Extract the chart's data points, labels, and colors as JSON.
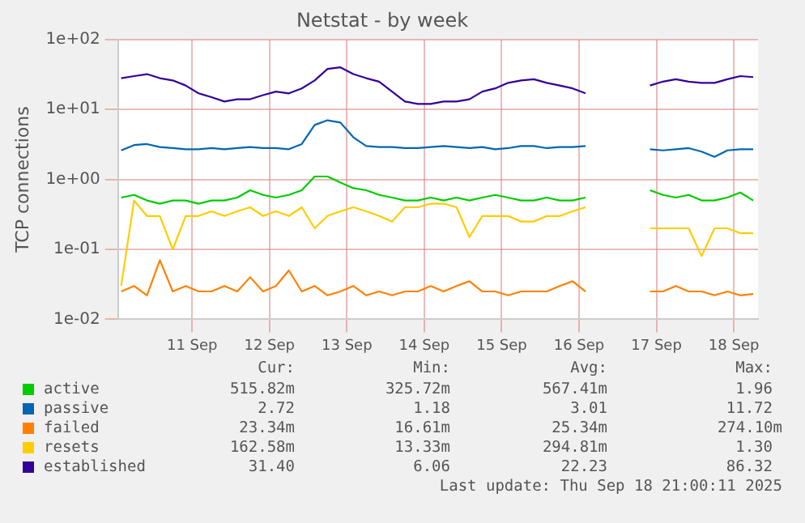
{
  "chart_data": {
    "type": "line",
    "title": "Netstat - by week",
    "ylabel": "TCP connections",
    "log": "y",
    "grid": true,
    "legend": "bottom",
    "marker": "none",
    "line_style": "solid",
    "x": [
      "2025-09-10T14:00",
      "2025-09-10T18:00",
      "2025-09-10T22:00",
      "2025-09-11T02:00",
      "2025-09-11T06:00",
      "2025-09-11T10:00",
      "2025-09-11T14:00",
      "2025-09-11T18:00",
      "2025-09-11T22:00",
      "2025-09-12T02:00",
      "2025-09-12T06:00",
      "2025-09-12T10:00",
      "2025-09-12T14:00",
      "2025-09-12T18:00",
      "2025-09-12T22:00",
      "2025-09-13T02:00",
      "2025-09-13T06:00",
      "2025-09-13T10:00",
      "2025-09-13T14:00",
      "2025-09-13T18:00",
      "2025-09-13T22:00",
      "2025-09-14T02:00",
      "2025-09-14T06:00",
      "2025-09-14T10:00",
      "2025-09-14T14:00",
      "2025-09-14T18:00",
      "2025-09-14T22:00",
      "2025-09-15T02:00",
      "2025-09-15T06:00",
      "2025-09-15T10:00",
      "2025-09-15T14:00",
      "2025-09-15T18:00",
      "2025-09-15T22:00",
      "2025-09-16T02:00",
      "2025-09-16T06:00",
      "2025-09-16T10:00",
      "2025-09-16T14:00",
      "2025-09-16T18:00",
      "2025-09-16T22:00",
      "2025-09-17T02:00",
      "2025-09-17T06:00",
      "2025-09-17T10:00",
      "2025-09-17T14:00",
      "2025-09-17T18:00",
      "2025-09-17T22:00",
      "2025-09-18T02:00",
      "2025-09-18T06:00",
      "2025-09-18T10:00",
      "2025-09-18T14:00",
      "2025-09-18T18:00"
    ],
    "xlim": [
      "2025-09-10T13:00",
      "2025-09-18T19:30"
    ],
    "xticks": [
      {
        "value": "2025-09-11T12:00",
        "label": "11 Sep"
      },
      {
        "value": "2025-09-12T12:00",
        "label": "12 Sep"
      },
      {
        "value": "2025-09-13T12:00",
        "label": "13 Sep"
      },
      {
        "value": "2025-09-14T12:00",
        "label": "14 Sep"
      },
      {
        "value": "2025-09-15T12:00",
        "label": "15 Sep"
      },
      {
        "value": "2025-09-16T12:00",
        "label": "16 Sep"
      },
      {
        "value": "2025-09-17T12:00",
        "label": "17 Sep"
      },
      {
        "value": "2025-09-18T12:00",
        "label": "18 Sep"
      }
    ],
    "ylim": [
      0.01,
      100
    ],
    "yticks": [
      {
        "value": 0.01,
        "label": "1e-02"
      },
      {
        "value": 0.1,
        "label": "1e-01"
      },
      {
        "value": 1,
        "label": "1e+00"
      },
      {
        "value": 10,
        "label": "1e+01"
      },
      {
        "value": 100,
        "label": "1e+02"
      }
    ],
    "series": [
      {
        "name": "active",
        "color": "#00cc00",
        "values": [
          0.55,
          0.6,
          0.5,
          0.45,
          0.5,
          0.5,
          0.45,
          0.5,
          0.5,
          0.55,
          0.7,
          0.6,
          0.55,
          0.6,
          0.7,
          1.1,
          1.1,
          0.9,
          0.75,
          0.7,
          0.6,
          0.55,
          0.5,
          0.5,
          0.55,
          0.5,
          0.55,
          0.5,
          0.55,
          0.6,
          0.55,
          0.5,
          0.5,
          0.55,
          0.5,
          0.5,
          0.55,
          null,
          null,
          null,
          null,
          0.7,
          0.6,
          0.55,
          0.6,
          0.5,
          0.5,
          0.55,
          0.65,
          0.5
        ]
      },
      {
        "name": "passive",
        "color": "#0066b3",
        "values": [
          2.6,
          3.1,
          3.2,
          2.9,
          2.8,
          2.7,
          2.7,
          2.8,
          2.7,
          2.8,
          2.9,
          2.8,
          2.8,
          2.7,
          3.2,
          6,
          7,
          6.5,
          4,
          3,
          2.9,
          2.9,
          2.8,
          2.8,
          2.9,
          3,
          2.9,
          2.8,
          2.9,
          2.7,
          2.8,
          3,
          3,
          2.8,
          2.9,
          2.9,
          3,
          null,
          null,
          null,
          null,
          2.7,
          2.6,
          2.7,
          2.8,
          2.5,
          2.1,
          2.6,
          2.7,
          2.7
        ]
      },
      {
        "name": "failed",
        "color": "#ff8000",
        "values": [
          0.025,
          0.03,
          0.022,
          0.07,
          0.025,
          0.03,
          0.025,
          0.025,
          0.03,
          0.025,
          0.04,
          0.025,
          0.03,
          0.05,
          0.025,
          0.03,
          0.022,
          0.025,
          0.03,
          0.022,
          0.025,
          0.022,
          0.025,
          0.025,
          0.03,
          0.025,
          0.03,
          0.035,
          0.025,
          0.025,
          0.022,
          0.025,
          0.025,
          0.025,
          0.03,
          0.035,
          0.025,
          null,
          null,
          null,
          null,
          0.025,
          0.025,
          0.03,
          0.025,
          0.025,
          0.022,
          0.025,
          0.022,
          0.023
        ]
      },
      {
        "name": "resets",
        "color": "#ffcc00",
        "values": [
          0.03,
          0.5,
          0.3,
          0.3,
          0.1,
          0.3,
          0.3,
          0.35,
          0.3,
          0.35,
          0.4,
          0.3,
          0.35,
          0.3,
          0.4,
          0.2,
          0.3,
          0.35,
          0.4,
          0.35,
          0.3,
          0.25,
          0.4,
          0.4,
          0.45,
          0.45,
          0.4,
          0.15,
          0.3,
          0.3,
          0.3,
          0.25,
          0.25,
          0.3,
          0.3,
          0.35,
          0.4,
          null,
          null,
          null,
          null,
          0.2,
          0.2,
          0.2,
          0.2,
          0.08,
          0.2,
          0.2,
          0.17,
          0.17
        ]
      },
      {
        "name": "established",
        "color": "#330099",
        "values": [
          28,
          30,
          32,
          28,
          26,
          22,
          17,
          15,
          13,
          14,
          14,
          16,
          18,
          17,
          20,
          26,
          38,
          40,
          32,
          28,
          25,
          18,
          13,
          12,
          12,
          13,
          13,
          14,
          18,
          20,
          24,
          26,
          27,
          24,
          22,
          20,
          17,
          null,
          null,
          null,
          null,
          22,
          25,
          27,
          25,
          24,
          24,
          27,
          30,
          29
        ]
      }
    ],
    "annotations": [
      "Cur:",
      "Min:",
      "Avg:",
      "Max:",
      "515.82m",
      "325.72m",
      "567.41m",
      "1.96",
      "2.72",
      "1.18",
      "3.01",
      "11.72",
      "23.34m",
      "16.61m",
      "25.34m",
      "274.10m",
      "162.58m",
      "13.33m",
      "294.81m",
      "1.30",
      "31.40",
      "6.06",
      "22.23",
      "86.32",
      "Last update: Thu Sep 18 21:00:11 2025"
    ]
  }
}
